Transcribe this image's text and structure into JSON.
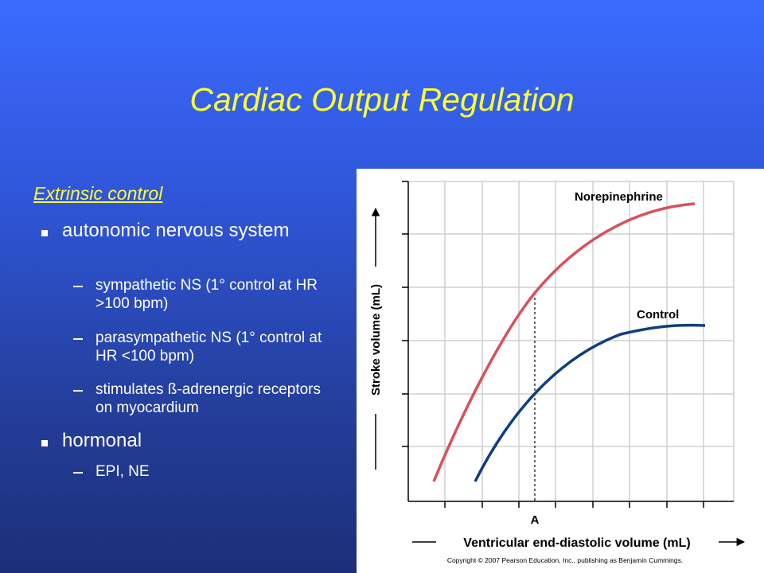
{
  "title": "Cardiac Output Regulation",
  "content": {
    "heading": "Extrinsic control",
    "items": [
      {
        "text": "autonomic nervous system",
        "subitems": [
          "sympathetic NS (1° control at HR >100 bpm)",
          "parasympathetic NS (1° control at HR <100 bpm)",
          "stimulates ß-adrenergic receptors on myocardium"
        ]
      },
      {
        "text": "hormonal",
        "subitems": [
          "EPI, NE"
        ]
      }
    ]
  },
  "figure": {
    "curves": [
      {
        "label": "Norepinephrine",
        "color": "#d9505a"
      },
      {
        "label": "Control",
        "color": "#0f3f7c"
      }
    ],
    "marker": "A",
    "y_axis_label": "Stroke volume (mL)",
    "x_axis_label": "Ventricular end-diastolic volume (mL)",
    "credit": "Copyright © 2007 Pearson Education, Inc., publishing as Benjamin Cummings."
  }
}
